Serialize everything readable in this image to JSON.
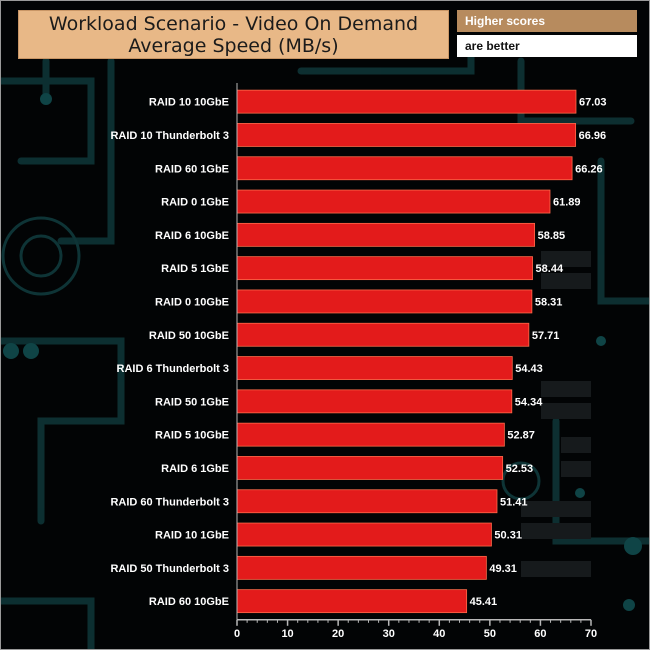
{
  "header": {
    "title_line1": "Workload Scenario - Video On Demand",
    "title_line2": "Average Speed (MB/s)",
    "note_line1": "Higher scores",
    "note_line2": "are better"
  },
  "colors": {
    "bar": "#e31b1b",
    "bar_edge": "#ff6a4a",
    "label": "#ffffff",
    "axis": "#b8b8b8",
    "circuit": "#0f3a3c"
  },
  "chart_data": {
    "type": "bar",
    "orientation": "horizontal",
    "title": "Workload Scenario - Video On Demand Average Speed (MB/s)",
    "xlim": [
      0,
      70
    ],
    "xticks": [
      0,
      10,
      20,
      30,
      40,
      50,
      60,
      70
    ],
    "grid": false,
    "categories": [
      "RAID 10 10GbE",
      "RAID 10 Thunderbolt 3",
      "RAID 60 1GbE",
      "RAID 0 1GbE",
      "RAID 6 10GbE",
      "RAID 5 1GbE",
      "RAID 0 10GbE",
      "RAID 50 10GbE",
      "RAID 6 Thunderbolt 3",
      "RAID 50 1GbE",
      "RAID 5 10GbE",
      "RAID 6 1GbE",
      "RAID 60 Thunderbolt 3",
      "RAID 10 1GbE",
      "RAID 50 Thunderbolt 3",
      "RAID 60 10GbE"
    ],
    "values": [
      67.03,
      66.96,
      66.26,
      61.89,
      58.85,
      58.44,
      58.31,
      57.71,
      54.43,
      54.34,
      52.87,
      52.53,
      51.41,
      50.31,
      49.31,
      45.41
    ],
    "value_labels": [
      "67.03",
      "66.96",
      "66.26",
      "61.89",
      "58.85",
      "58.44",
      "58.31",
      "57.71",
      "54.43",
      "54.34",
      "52.87",
      "52.53",
      "51.41",
      "50.31",
      "49.31",
      "45.41"
    ]
  }
}
